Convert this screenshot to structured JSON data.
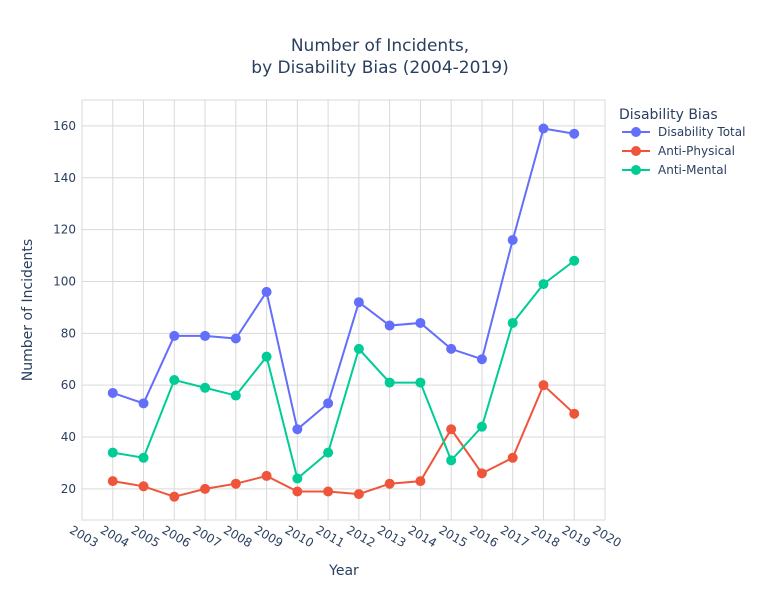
{
  "chart_data": {
    "type": "line",
    "title_line1": "Number of Incidents,",
    "title_line2": "by Disability Bias (2004-2019)",
    "xlabel": "Year",
    "ylabel": "Number of Incidents",
    "xlim": [
      2003,
      2020
    ],
    "ylim": [
      8,
      170
    ],
    "x_ticks": [
      2003,
      2004,
      2005,
      2006,
      2007,
      2008,
      2009,
      2010,
      2011,
      2012,
      2013,
      2014,
      2015,
      2016,
      2017,
      2018,
      2019,
      2020
    ],
    "y_ticks": [
      20,
      40,
      60,
      80,
      100,
      120,
      140,
      160
    ],
    "grid": true,
    "legend_title": "Disability Bias",
    "legend_position": "top-right",
    "x": [
      2004,
      2005,
      2006,
      2007,
      2008,
      2009,
      2010,
      2011,
      2012,
      2013,
      2014,
      2015,
      2016,
      2017,
      2018,
      2019
    ],
    "series": [
      {
        "name": "Disability Total",
        "color": "#636efa",
        "values": [
          57,
          53,
          79,
          79,
          78,
          96,
          43,
          53,
          92,
          83,
          84,
          74,
          70,
          116,
          159,
          157
        ]
      },
      {
        "name": "Anti-Physical",
        "color": "#ef553b",
        "values": [
          23,
          21,
          17,
          20,
          22,
          25,
          19,
          19,
          18,
          22,
          23,
          43,
          26,
          32,
          60,
          49
        ]
      },
      {
        "name": "Anti-Mental",
        "color": "#00cc96",
        "values": [
          34,
          32,
          62,
          59,
          56,
          71,
          24,
          34,
          74,
          61,
          61,
          31,
          44,
          84,
          99,
          108
        ]
      }
    ]
  }
}
